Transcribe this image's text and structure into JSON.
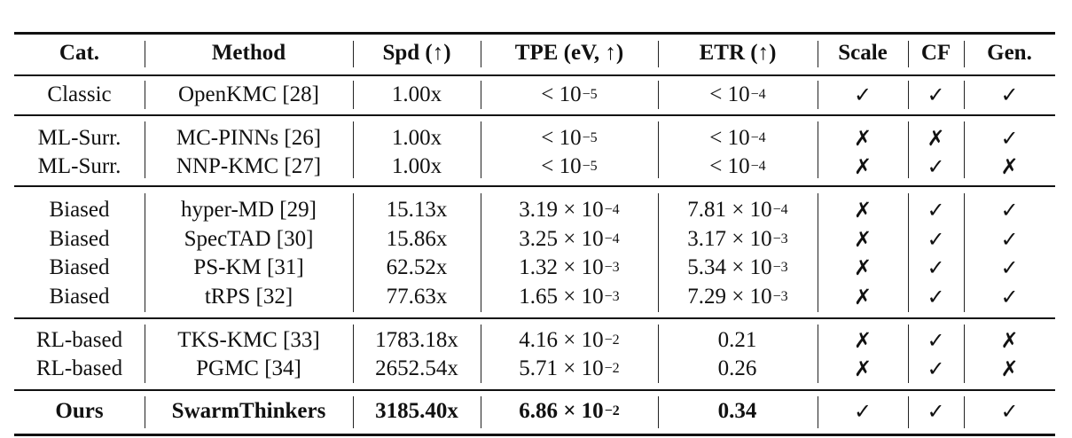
{
  "table": {
    "headers": [
      "Cat.",
      "Method",
      "Spd (↑)",
      "TPE (eV, ↑)",
      "ETR (↑)",
      "Scale",
      "CF",
      "Gen."
    ],
    "groups": [
      {
        "rows": [
          {
            "cat": "Classic",
            "method": "OpenKMC [28]",
            "spd": "1.00x",
            "tpe_pre": "< 10",
            "tpe_exp": "−5",
            "etr_pre": "< 10",
            "etr_exp": "−4",
            "scale": "✓",
            "cf": "✓",
            "gen": "✓"
          }
        ]
      },
      {
        "rows": [
          {
            "cat": "ML-Surr.",
            "method": "MC-PINNs [26]",
            "spd": "1.00x",
            "tpe_pre": "< 10",
            "tpe_exp": "−5",
            "etr_pre": "< 10",
            "etr_exp": "−4",
            "scale": "✗",
            "cf": "✗",
            "gen": "✓"
          },
          {
            "cat": "ML-Surr.",
            "method": "NNP-KMC [27]",
            "spd": "1.00x",
            "tpe_pre": "< 10",
            "tpe_exp": "−5",
            "etr_pre": "< 10",
            "etr_exp": "−4",
            "scale": "✗",
            "cf": "✓",
            "gen": "✗"
          }
        ]
      },
      {
        "rows": [
          {
            "cat": "Biased",
            "method": "hyper-MD [29]",
            "spd": "15.13x",
            "tpe_pre": "3.19 × 10",
            "tpe_exp": "−4",
            "etr_pre": "7.81 × 10",
            "etr_exp": "−4",
            "scale": "✗",
            "cf": "✓",
            "gen": "✓"
          },
          {
            "cat": "Biased",
            "method": "SpecTAD [30]",
            "spd": "15.86x",
            "tpe_pre": "3.25 × 10",
            "tpe_exp": "−4",
            "etr_pre": "3.17 × 10",
            "etr_exp": "−3",
            "scale": "✗",
            "cf": "✓",
            "gen": "✓"
          },
          {
            "cat": "Biased",
            "method": "PS-KM [31]",
            "spd": "62.52x",
            "tpe_pre": "1.32 × 10",
            "tpe_exp": "−3",
            "etr_pre": "5.34 × 10",
            "etr_exp": "−3",
            "scale": "✗",
            "cf": "✓",
            "gen": "✓"
          },
          {
            "cat": "Biased",
            "method": "tRPS [32]",
            "spd": "77.63x",
            "tpe_pre": "1.65 × 10",
            "tpe_exp": "−3",
            "etr_pre": "7.29 × 10",
            "etr_exp": "−3",
            "scale": "✗",
            "cf": "✓",
            "gen": "✓"
          }
        ]
      },
      {
        "rows": [
          {
            "cat": "RL-based",
            "method": "TKS-KMC [33]",
            "spd": "1783.18x",
            "tpe_pre": "4.16 × 10",
            "tpe_exp": "−2",
            "etr_pre": "0.21",
            "etr_exp": "",
            "scale": "✗",
            "cf": "✓",
            "gen": "✗"
          },
          {
            "cat": "RL-based",
            "method": "PGMC [34]",
            "spd": "2652.54x",
            "tpe_pre": "5.71 × 10",
            "tpe_exp": "−2",
            "etr_pre": "0.26",
            "etr_exp": "",
            "scale": "✗",
            "cf": "✓",
            "gen": "✗"
          }
        ]
      },
      {
        "rows": [
          {
            "cat": "Ours",
            "method": "SwarmThinkers",
            "spd": "3185.40x",
            "tpe_pre": "6.86 × 10",
            "tpe_exp": "−2",
            "etr_pre": "0.34",
            "etr_exp": "",
            "scale": "✓",
            "cf": "✓",
            "gen": "✓"
          }
        ]
      }
    ]
  },
  "chart_data": {
    "type": "table",
    "columns": [
      "Cat.",
      "Method",
      "Spd (↑)",
      "TPE (eV, ↑)",
      "ETR (↑)",
      "Scale",
      "CF",
      "Gen."
    ],
    "rows": [
      [
        "Classic",
        "OpenKMC [28]",
        "1.00x",
        "< 1e-5",
        "< 1e-4",
        "✓",
        "✓",
        "✓"
      ],
      [
        "ML-Surr.",
        "MC-PINNs [26]",
        "1.00x",
        "< 1e-5",
        "< 1e-4",
        "✗",
        "✗",
        "✓"
      ],
      [
        "ML-Surr.",
        "NNP-KMC [27]",
        "1.00x",
        "< 1e-5",
        "< 1e-4",
        "✗",
        "✓",
        "✗"
      ],
      [
        "Biased",
        "hyper-MD [29]",
        "15.13x",
        "3.19e-4",
        "7.81e-4",
        "✗",
        "✓",
        "✓"
      ],
      [
        "Biased",
        "SpecTAD [30]",
        "15.86x",
        "3.25e-4",
        "3.17e-3",
        "✗",
        "✓",
        "✓"
      ],
      [
        "Biased",
        "PS-KM [31]",
        "62.52x",
        "1.32e-3",
        "5.34e-3",
        "✗",
        "✓",
        "✓"
      ],
      [
        "Biased",
        "tRPS [32]",
        "77.63x",
        "1.65e-3",
        "7.29e-3",
        "✗",
        "✓",
        "✓"
      ],
      [
        "RL-based",
        "TKS-KMC [33]",
        "1783.18x",
        "4.16e-2",
        "0.21",
        "✗",
        "✓",
        "✗"
      ],
      [
        "RL-based",
        "PGMC [34]",
        "2652.54x",
        "5.71e-2",
        "0.26",
        "✗",
        "✓",
        "✗"
      ],
      [
        "Ours",
        "SwarmThinkers",
        "3185.40x",
        "6.86e-2",
        "0.34",
        "✓",
        "✓",
        "✓"
      ]
    ]
  }
}
